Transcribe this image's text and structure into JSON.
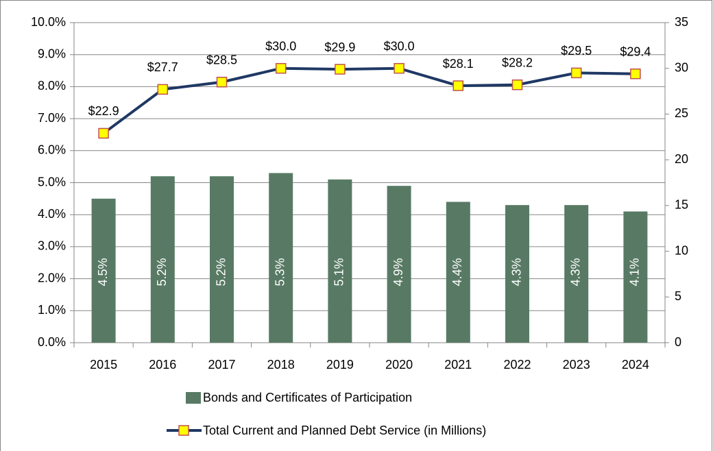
{
  "chart_data": {
    "type": "bar",
    "categories": [
      "2015",
      "2016",
      "2017",
      "2018",
      "2019",
      "2020",
      "2021",
      "2022",
      "2023",
      "2024"
    ],
    "series": [
      {
        "name": "Bonds and Certificates of Participation",
        "type": "bar",
        "color": "#587a64",
        "values": [
          4.5,
          5.2,
          5.2,
          5.3,
          5.1,
          4.9,
          4.4,
          4.3,
          4.3,
          4.1
        ],
        "value_labels": [
          "4.5%",
          "5.2%",
          "5.2%",
          "5.3%",
          "5.1%",
          "4.9%",
          "4.4%",
          "4.3%",
          "4.3%",
          "4.1%"
        ]
      },
      {
        "name": "Total Current and Planned Debt Service (in Millions)",
        "type": "line",
        "axis": "y2",
        "color": "#1f3864",
        "marker_color": "#ffff00",
        "marker_edge": "#c0504d",
        "values": [
          22.9,
          27.7,
          28.5,
          30.0,
          29.9,
          30.0,
          28.1,
          28.2,
          29.5,
          29.4
        ],
        "value_labels": [
          "$22.9",
          "$27.7",
          "$28.5",
          "$30.0",
          "$29.9",
          "$30.0",
          "$28.1",
          "$28.2",
          "$29.5",
          "$29.4"
        ]
      }
    ],
    "ylim": [
      0,
      10
    ],
    "yticks": [
      {
        "value": 0,
        "label": "0.0%"
      },
      {
        "value": 1,
        "label": "1.0%"
      },
      {
        "value": 2,
        "label": "2.0%"
      },
      {
        "value": 3,
        "label": "3.0%"
      },
      {
        "value": 4,
        "label": "4.0%"
      },
      {
        "value": 5,
        "label": "5.0%"
      },
      {
        "value": 6,
        "label": "6.0%"
      },
      {
        "value": 7,
        "label": "7.0%"
      },
      {
        "value": 8,
        "label": "8.0%"
      },
      {
        "value": 9,
        "label": "9.0%"
      },
      {
        "value": 10,
        "label": "10.0%"
      }
    ],
    "y2lim": [
      0,
      35
    ],
    "y2ticks": [
      0,
      5,
      10,
      15,
      20,
      25,
      30,
      35
    ],
    "grid": true
  }
}
